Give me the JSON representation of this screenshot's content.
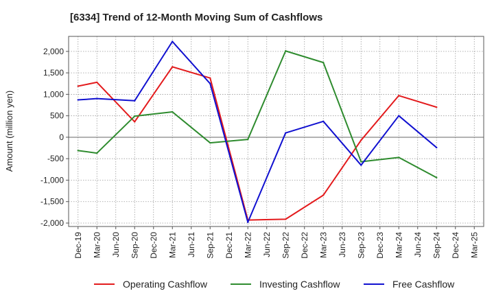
{
  "chart_data": {
    "type": "line",
    "title": "[6334]  Trend of 12-Month Moving Sum of Cashflows",
    "ylabel": "Amount (million yen)",
    "xlabel": "",
    "categories": [
      "Dec-19",
      "Mar-20",
      "Jun-20",
      "Sep-20",
      "Dec-20",
      "Mar-21",
      "Jun-21",
      "Sep-21",
      "Dec-21",
      "Mar-22",
      "Jun-22",
      "Sep-22",
      "Dec-22",
      "Mar-23",
      "Jun-23",
      "Sep-23",
      "Dec-23",
      "Mar-24",
      "Jun-24",
      "Sep-24",
      "Dec-24",
      "Mar-25"
    ],
    "ylim": [
      -2080,
      2350
    ],
    "yticks": [
      -2000,
      -1500,
      -1000,
      -500,
      0,
      500,
      1000,
      1500,
      2000
    ],
    "ytick_labels": [
      "-2,000",
      "-1,500",
      "-1,000",
      "-500",
      "0",
      "500",
      "1,000",
      "1,500",
      "2,000"
    ],
    "grid": true,
    "legend_position": "bottom",
    "series": [
      {
        "name": "Operating Cashflow",
        "color": "#e31a1c",
        "values": [
          1190,
          1280,
          null,
          360,
          null,
          1640,
          null,
          1380,
          null,
          -1930,
          null,
          -1910,
          null,
          -1350,
          null,
          -70,
          null,
          970,
          null,
          700,
          null,
          null
        ]
      },
      {
        "name": "Investing Cashflow",
        "color": "#2e8b2e",
        "values": [
          -310,
          -370,
          null,
          490,
          null,
          590,
          null,
          -130,
          null,
          -50,
          null,
          2010,
          null,
          1740,
          null,
          -570,
          null,
          -470,
          null,
          -940,
          null,
          null
        ]
      },
      {
        "name": "Free Cashflow",
        "color": "#1010d0",
        "values": [
          870,
          900,
          null,
          850,
          null,
          2230,
          null,
          1250,
          null,
          -1980,
          null,
          100,
          null,
          370,
          null,
          -650,
          null,
          500,
          null,
          -240,
          null,
          null
        ]
      }
    ]
  }
}
